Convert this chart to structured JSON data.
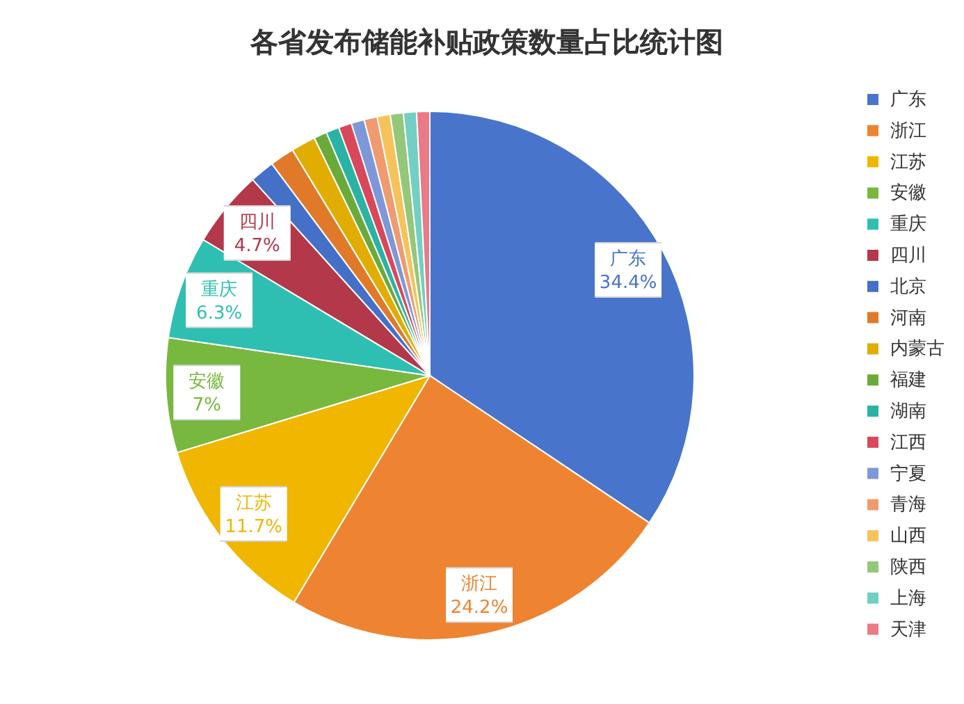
{
  "chart_data": {
    "type": "pie",
    "title": "各省发布储能补贴政策数量占比统计图",
    "categories": [
      "广东",
      "浙江",
      "江苏",
      "安徽",
      "重庆",
      "四川",
      "北京",
      "河南",
      "内蒙古",
      "福建",
      "湖南",
      "江西",
      "宁夏",
      "青海",
      "山西",
      "陕西",
      "上海",
      "天津"
    ],
    "values": [
      34.4,
      24.2,
      11.7,
      7,
      6.3,
      4.7,
      1.5,
      1.5,
      1.5,
      0.8,
      0.8,
      0.8,
      0.8,
      0.8,
      0.8,
      0.8,
      0.8,
      0.8
    ],
    "colors": [
      "#4874cb",
      "#ee8431",
      "#f0b600",
      "#78b83f",
      "#2fbfb2",
      "#b3384a",
      "#4470c8",
      "#e07a28",
      "#e0ad00",
      "#6aaa3a",
      "#2ab3a5",
      "#d9485a",
      "#7e97d8",
      "#f09a70",
      "#f5c35a",
      "#94c77a",
      "#72cfc3",
      "#ea7a85"
    ],
    "value_labels": [
      "34.4%",
      "24.2%",
      "11.7%",
      "7%",
      "6.3%",
      "4.7%",
      null,
      null,
      null,
      null,
      null,
      null,
      null,
      null,
      null,
      null,
      null,
      null
    ],
    "legend": "right"
  }
}
